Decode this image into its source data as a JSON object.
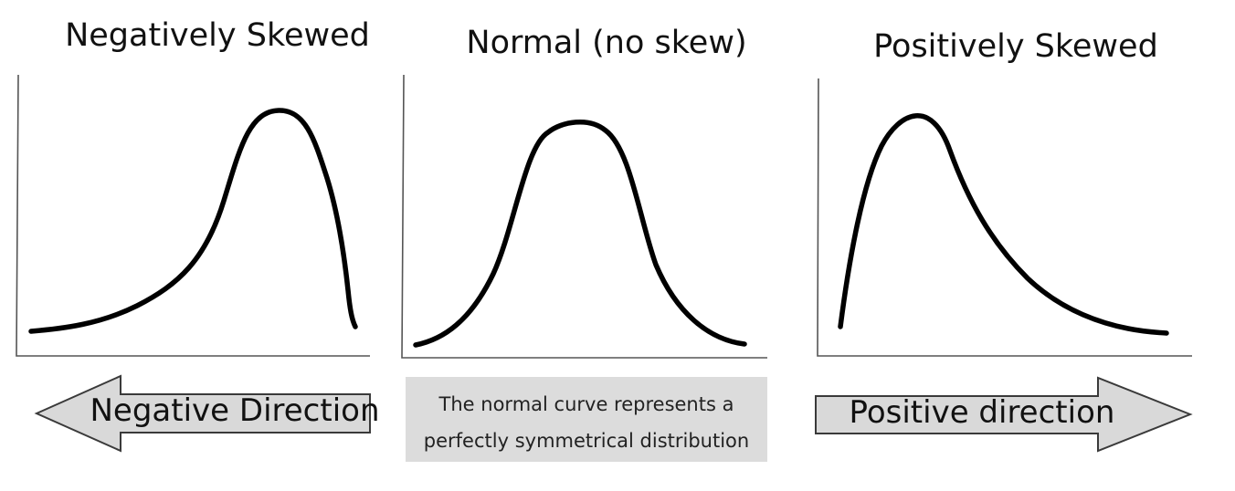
{
  "panels": [
    {
      "title": "Negatively Skewed",
      "shape": "negatively-skewed"
    },
    {
      "title": "Normal (no skew)",
      "shape": "normal"
    },
    {
      "title": "Positively Skewed",
      "shape": "positively-skewed"
    }
  ],
  "arrows": {
    "negative_label": "Negative Direction",
    "positive_label": "Positive direction"
  },
  "note": {
    "line1": "The normal curve represents a",
    "line2": "perfectly symmetrical distribution"
  },
  "colors": {
    "curve": "#000000",
    "arrow_fill": "#d9d9d9",
    "note_fill": "#dcdcdc"
  }
}
